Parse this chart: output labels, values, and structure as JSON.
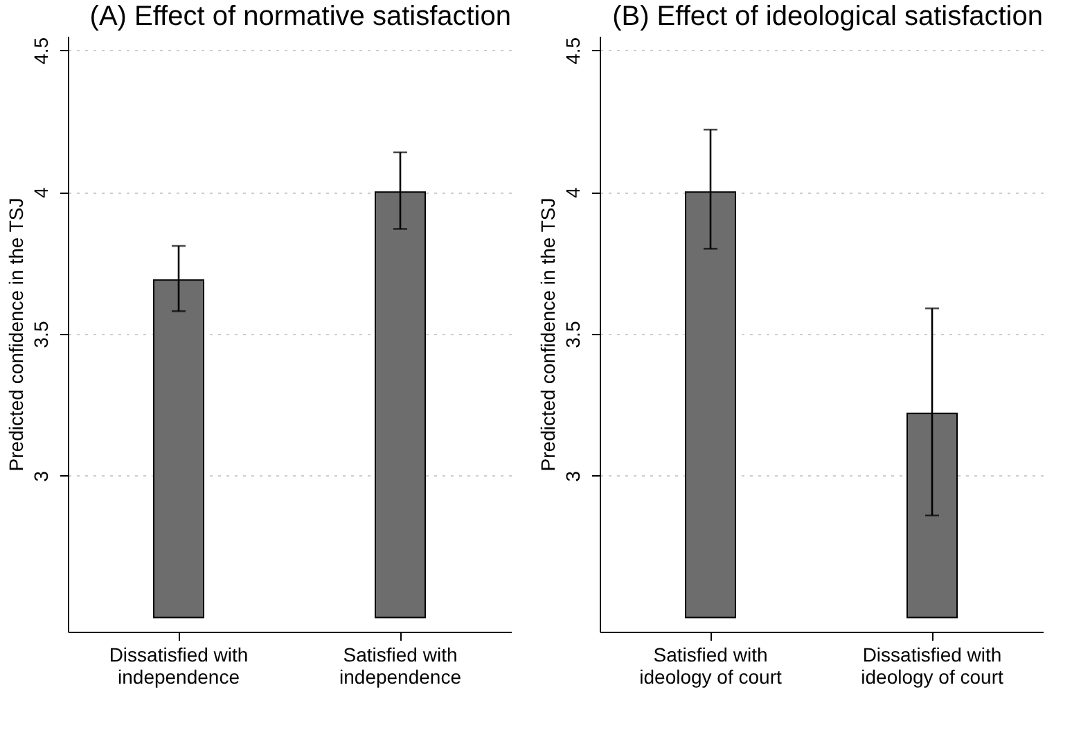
{
  "chart_data": [
    {
      "type": "bar",
      "title": "(A) Effect of normative satisfaction",
      "ylabel": "Predicted confidence in the TSJ",
      "categories": [
        "Dissatisfied with independence",
        "Satisfied with independence"
      ],
      "values": [
        1.19,
        1.5
      ],
      "base": [
        2.5,
        2.5
      ],
      "errors": [
        [
          3.58,
          3.81
        ],
        [
          3.87,
          4.14
        ]
      ],
      "color": "#6d6d6d",
      "ylim": [
        2.45,
        4.55
      ],
      "yticks": [
        3,
        3.5,
        4,
        4.5
      ],
      "grid": "y"
    },
    {
      "type": "bar",
      "title": "(B) Effect of ideological satisfaction",
      "ylabel": "Predicted confidence in the TSJ",
      "categories": [
        "Satisfied with ideology of court",
        "Dissatisfied with ideology of court"
      ],
      "values": [
        1.5,
        0.72
      ],
      "base": [
        2.5,
        2.5
      ],
      "errors": [
        [
          3.8,
          4.22
        ],
        [
          2.86,
          3.59
        ]
      ],
      "color": "#6d6d6d",
      "ylim": [
        2.45,
        4.55
      ],
      "yticks": [
        3,
        3.5,
        4,
        4.5
      ],
      "grid": "y"
    }
  ]
}
